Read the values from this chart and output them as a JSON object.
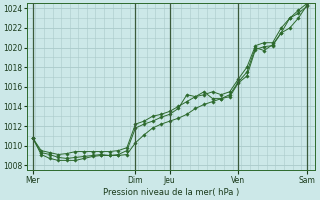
{
  "background_color": "#cce8e8",
  "plot_bg_color": "#cce8e8",
  "grid_color": "#aacaca",
  "line_color": "#2d6a2d",
  "ylabel_text": "Pression niveau de la mer( hPa )",
  "ylim": [
    1007.5,
    1024.5
  ],
  "yticks": [
    1008,
    1010,
    1012,
    1014,
    1016,
    1018,
    1020,
    1022,
    1024
  ],
  "xtick_labels": [
    "Mer",
    "Dim",
    "Jeu",
    "Ven",
    "Sam"
  ],
  "xtick_positions": [
    0,
    72,
    96,
    144,
    192
  ],
  "xlim": [
    -4,
    198
  ],
  "vline_positions": [
    0,
    72,
    96,
    144,
    192
  ],
  "line1_x": [
    0,
    6,
    12,
    18,
    24,
    30,
    36,
    42,
    48,
    54,
    60,
    66,
    72,
    78,
    84,
    90,
    96,
    102,
    108,
    114,
    120,
    126,
    132,
    138,
    144,
    150,
    156,
    162,
    168,
    174,
    180,
    186,
    192
  ],
  "line1_y": [
    1010.8,
    1009.3,
    1009.1,
    1008.8,
    1008.7,
    1008.8,
    1008.9,
    1009.0,
    1009.1,
    1009.0,
    1009.0,
    1009.1,
    1010.3,
    1011.1,
    1011.8,
    1012.2,
    1012.5,
    1012.8,
    1013.2,
    1013.8,
    1014.2,
    1014.5,
    1014.8,
    1015.0,
    1016.4,
    1017.1,
    1019.8,
    1020.1,
    1020.2,
    1021.5,
    1022.0,
    1023.0,
    1024.3
  ],
  "line2_x": [
    0,
    6,
    12,
    18,
    24,
    30,
    36,
    42,
    48,
    54,
    60,
    66,
    72,
    78,
    84,
    90,
    96,
    102,
    108,
    114,
    120,
    126,
    132,
    138,
    144,
    150,
    156,
    162,
    168,
    174,
    180,
    186,
    192
  ],
  "line2_y": [
    1010.8,
    1009.1,
    1008.7,
    1008.5,
    1008.5,
    1008.5,
    1008.7,
    1008.9,
    1009.0,
    1009.0,
    1009.1,
    1009.5,
    1011.8,
    1012.2,
    1012.5,
    1012.9,
    1013.2,
    1013.8,
    1015.2,
    1015.0,
    1015.5,
    1014.8,
    1014.8,
    1015.2,
    1016.5,
    1017.5,
    1020.0,
    1019.7,
    1020.3,
    1021.5,
    1023.0,
    1023.5,
    1024.2
  ],
  "line3_x": [
    0,
    6,
    12,
    18,
    24,
    30,
    36,
    42,
    48,
    54,
    60,
    66,
    72,
    78,
    84,
    90,
    96,
    102,
    108,
    114,
    120,
    126,
    132,
    138,
    144,
    150,
    156,
    162,
    168,
    174,
    180,
    186,
    192
  ],
  "line3_y": [
    1010.8,
    1009.5,
    1009.3,
    1009.1,
    1009.2,
    1009.4,
    1009.4,
    1009.4,
    1009.4,
    1009.4,
    1009.5,
    1009.8,
    1012.2,
    1012.5,
    1013.0,
    1013.2,
    1013.5,
    1014.0,
    1014.5,
    1015.0,
    1015.2,
    1015.5,
    1015.2,
    1015.5,
    1016.8,
    1018.0,
    1020.2,
    1020.5,
    1020.5,
    1022.0,
    1023.0,
    1023.8,
    1024.5
  ],
  "figsize": [
    3.2,
    2.0
  ],
  "dpi": 100
}
